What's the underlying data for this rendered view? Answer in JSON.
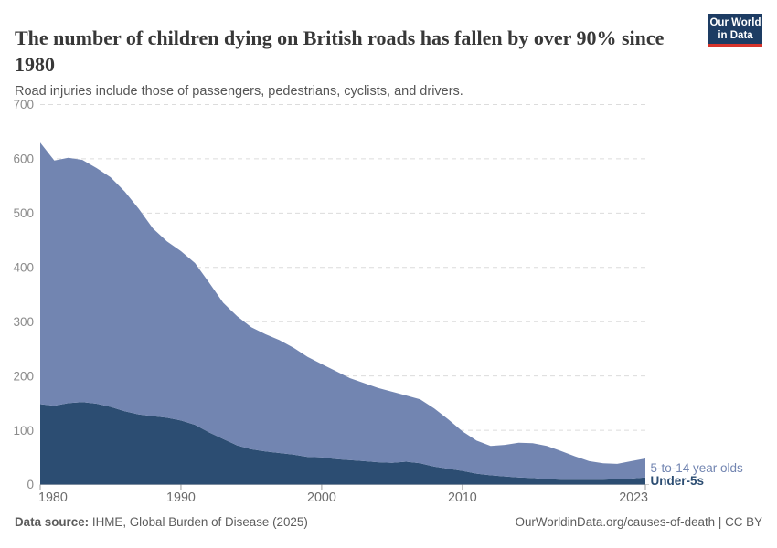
{
  "header": {
    "title": "The number of children dying on British roads has fallen by over 90% since 1980",
    "subtitle": "Road injuries include those of passengers, pedestrians, cyclists, and drivers."
  },
  "logo": {
    "line1": "Our World",
    "line2": "in Data",
    "bg_color": "#1d3c63",
    "accent_color": "#d7342b"
  },
  "chart_data": {
    "type": "area",
    "stacked": true,
    "title": "The number of children dying on British roads has fallen by over 90% since 1980",
    "xlabel": "",
    "ylabel": "",
    "ylim": [
      0,
      700
    ],
    "xlim": [
      1980,
      2023
    ],
    "grid": "dashed-horizontal",
    "legend_position": "right-of-last-point",
    "y_ticks": [
      0,
      100,
      200,
      300,
      400,
      500,
      600,
      700
    ],
    "x_ticks": [
      1980,
      1990,
      2000,
      2010,
      2023
    ],
    "x": [
      1980,
      1981,
      1982,
      1983,
      1984,
      1985,
      1986,
      1987,
      1988,
      1989,
      1990,
      1991,
      1992,
      1993,
      1994,
      1995,
      1996,
      1997,
      1998,
      1999,
      2000,
      2001,
      2002,
      2003,
      2004,
      2005,
      2006,
      2007,
      2008,
      2009,
      2010,
      2011,
      2012,
      2013,
      2014,
      2015,
      2016,
      2017,
      2018,
      2019,
      2020,
      2021,
      2022,
      2023
    ],
    "series": [
      {
        "name": "Under-5s",
        "color": "#2c4d72",
        "values": [
          148,
          145,
          150,
          152,
          149,
          143,
          135,
          129,
          126,
          123,
          118,
          110,
          96,
          84,
          72,
          65,
          61,
          58,
          55,
          51,
          50,
          47,
          45,
          43,
          41,
          40,
          42,
          39,
          33,
          29,
          25,
          20,
          17,
          15,
          13,
          12,
          10,
          9,
          9,
          9,
          9,
          10,
          11,
          13
        ]
      },
      {
        "name": "5-to-14 year olds",
        "color": "#7285b1",
        "values": [
          482,
          452,
          452,
          446,
          434,
          423,
          405,
          379,
          346,
          325,
          312,
          298,
          276,
          251,
          238,
          225,
          216,
          208,
          197,
          184,
          172,
          162,
          151,
          144,
          137,
          131,
          122,
          118,
          107,
          91,
          73,
          61,
          54,
          58,
          64,
          64,
          61,
          53,
          43,
          34,
          30,
          28,
          32,
          35
        ]
      }
    ],
    "axis_colors": {
      "grid": "#dcdcdc",
      "zero_line": "#cccccc",
      "tick": "#9e9e9e",
      "y_label": "#8b8b8b",
      "x_label": "#6b6b6b"
    }
  },
  "footer": {
    "source_label": "Data source:",
    "source_text": " IHME, Global Burden of Disease (2025)",
    "citation_link": "OurWorldinData.org/causes-of-death",
    "license": "| CC BY"
  }
}
